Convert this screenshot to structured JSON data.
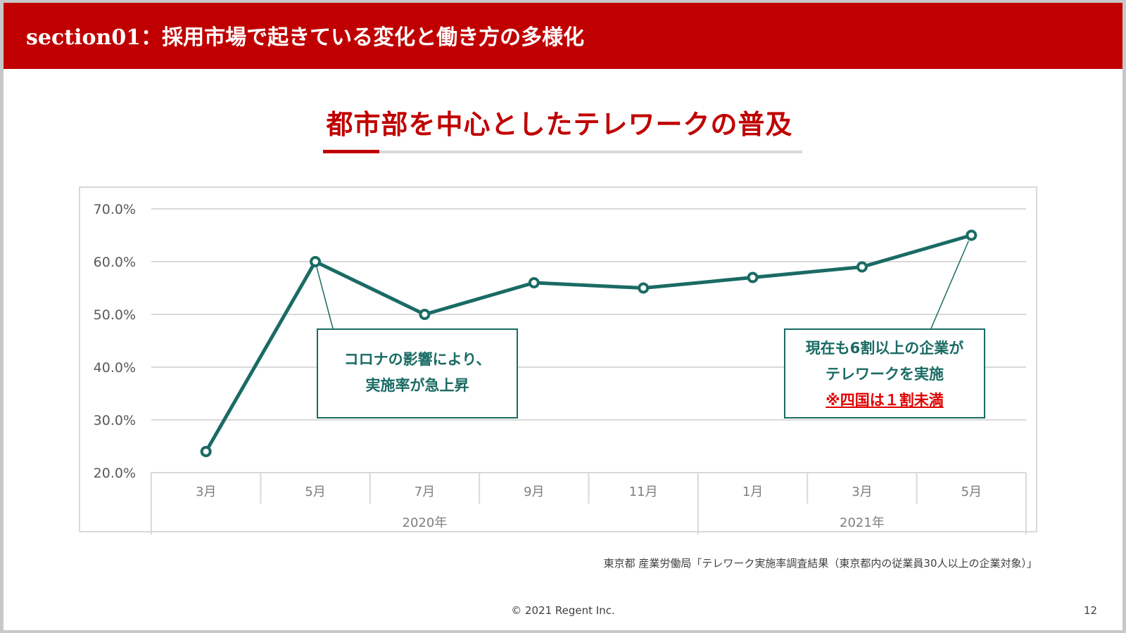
{
  "header": {
    "title": "section01：採用市場で起きている変化と働き方の多様化"
  },
  "colors": {
    "header_bg": "#c00000",
    "accent": "#c00000",
    "series": "#1a6b64",
    "grid": "#d9d9d9",
    "note": "#e00000"
  },
  "chart_data": {
    "type": "line",
    "title": "都市部を中心としたテレワークの普及",
    "categories": [
      "3月",
      "5月",
      "7月",
      "9月",
      "11月",
      "1月",
      "3月",
      "5月"
    ],
    "groups": [
      {
        "label": "2020年",
        "span": 5
      },
      {
        "label": "2021年",
        "span": 3
      }
    ],
    "series": [
      {
        "values": [
          24.0,
          60.0,
          50.0,
          56.0,
          55.0,
          57.0,
          59.0,
          65.0
        ]
      }
    ],
    "ylim": [
      20,
      70
    ],
    "yticks": [
      "70.0%",
      "60.0%",
      "50.0%",
      "40.0%",
      "30.0%",
      "20.0%"
    ],
    "ytick_values": [
      70,
      60,
      50,
      40,
      30,
      20
    ],
    "grid": true,
    "legend": "none",
    "annotations": [
      {
        "lines": [
          "コロナの影響により、",
          "実施率が急上昇"
        ],
        "target_index": 1
      },
      {
        "lines": [
          "現在も6割以上の企業が",
          "テレワークを実施"
        ],
        "note": "※四国は１割未満",
        "target_index": 7
      }
    ]
  },
  "source": "東京都 産業労働局「テレワーク実施率調査結果（東京都内の従業員30人以上の企業対象）」",
  "footer": {
    "copyright": "© 2021 Regent Inc.",
    "page_number": "12"
  }
}
